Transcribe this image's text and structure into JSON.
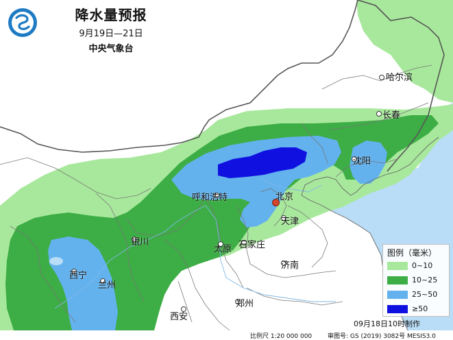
{
  "title": "降水量预报",
  "date_range": "9月19日—21日",
  "issuer": "中央气象台",
  "legend": {
    "title": "图例（毫米）",
    "items": [
      {
        "label": "0~10",
        "color": "#a8e89c"
      },
      {
        "label": "10~25",
        "color": "#3dad45"
      },
      {
        "label": "25~50",
        "color": "#63b2ee"
      },
      {
        "label": "≥50",
        "color": "#1010e0"
      }
    ]
  },
  "cities": {
    "haerbin": "哈尔滨",
    "changchun": "长春",
    "shenyang": "沈阳",
    "beijing": "北京",
    "tianjin": "天津",
    "huhehaote": "呼和浩特",
    "shijiazhuang": "石家庄",
    "taiyuan": "太原",
    "jinan": "济南",
    "yinchuan": "银川",
    "xining": "西宁",
    "lanzhou": "兰州",
    "zhengzhou": "郑州",
    "xian": "西安"
  },
  "issue_time": "09月18日10时制作",
  "scale": "比例尺 1:20 000 000",
  "review_number": "审图号: GS (2019) 3082号 MESIS3.0",
  "colors": {
    "sea": "#b9ddf6",
    "land": "#ffffff",
    "light_green": "#a8e89c",
    "mid_green": "#3dad45",
    "light_blue": "#63b2ee",
    "dark_blue": "#1010e0"
  }
}
